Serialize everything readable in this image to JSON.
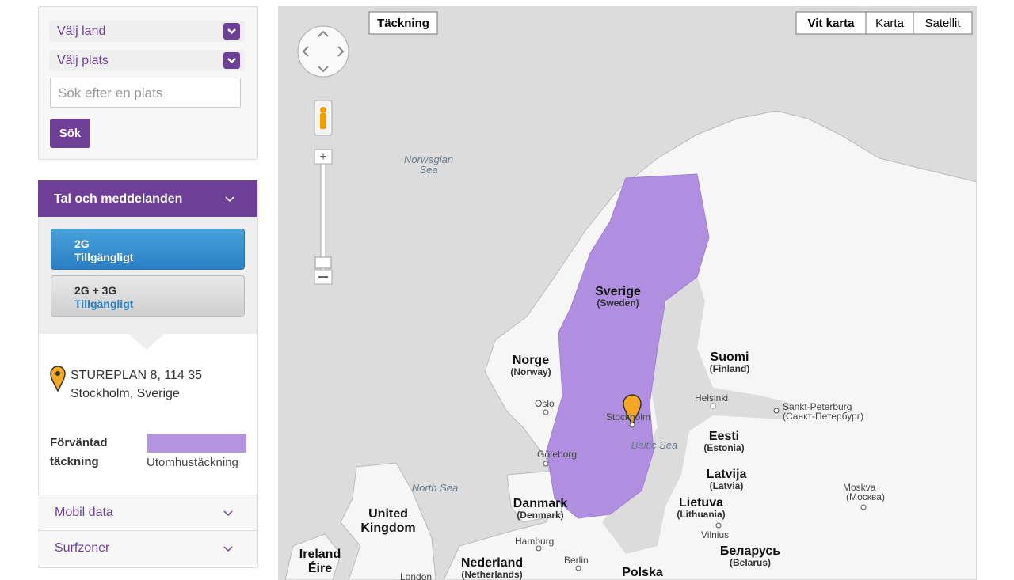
{
  "sidebar": {
    "country_select": "Välj land",
    "place_select": "Välj plats",
    "search_placeholder": "Sök efter en plats",
    "search_button": "Sök",
    "section_title": "Tal och meddelanden",
    "options": [
      {
        "name": "2G",
        "status": "Tillgängligt"
      },
      {
        "name": "2G + 3G",
        "status": "Tillgängligt"
      }
    ],
    "address": [
      "STUREPLAN 8, 114 35",
      "Stockholm, Sverige"
    ],
    "legend": {
      "label": [
        "Förväntad",
        "täckning"
      ],
      "item": "Utomhustäckning"
    },
    "sections": [
      "Mobil data",
      "Surfzoner"
    ]
  },
  "map": {
    "coverage_button": "Täckning",
    "map_types": [
      "Vit karta",
      "Karta",
      "Satellit"
    ],
    "seas": [
      "Norwegian",
      "Sea",
      "North Sea",
      "Baltic Sea"
    ],
    "countries": [
      {
        "name": "Sverige",
        "sub": "(Sweden)"
      },
      {
        "name": "Norge",
        "sub": "(Norway)"
      },
      {
        "name": "Suomi",
        "sub": "(Finland)"
      },
      {
        "name": "Eesti",
        "sub": "(Estonia)"
      },
      {
        "name": "Latvija",
        "sub": "(Latvia)"
      },
      {
        "name": "Lietuva",
        "sub": "(Lithuania)"
      },
      {
        "name": "Danmark",
        "sub": "(Denmark)"
      },
      {
        "name": "Беларусь",
        "sub": "(Belarus)"
      },
      {
        "name": "Nederland",
        "sub": "(Netherlands)"
      },
      {
        "name": "United",
        "sub": "Kingdom"
      },
      {
        "name": "Ireland",
        "sub": "Éire"
      },
      {
        "name": "Polska",
        "sub": ""
      }
    ],
    "cities": [
      "Oslo",
      "Stockholm",
      "Helsinki",
      "Göteborg",
      "Vilnius",
      "Hamburg",
      "Berlin",
      "Moskva",
      "(Москва)",
      "Sankt-Peterburg",
      "(Санкт-Петербург)",
      "London"
    ]
  }
}
